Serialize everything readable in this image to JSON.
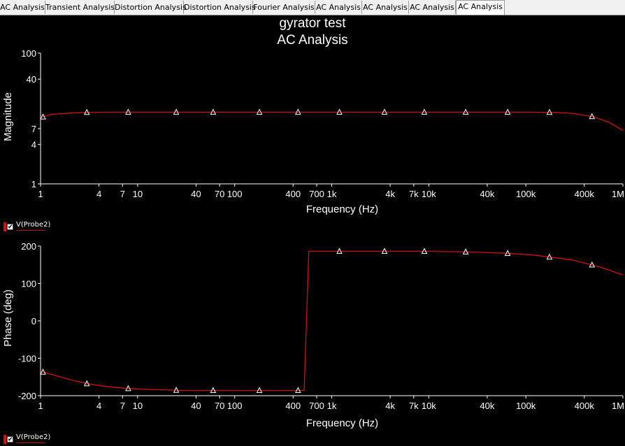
{
  "tabs": [
    {
      "label": "AC Analysis",
      "active": false
    },
    {
      "label": "Transient Analysis",
      "active": false
    },
    {
      "label": "Distortion Analysis",
      "active": false
    },
    {
      "label": "Distortion Analysis",
      "active": false
    },
    {
      "label": "Fourier Analysis",
      "active": false
    },
    {
      "label": "AC Analysis",
      "active": false
    },
    {
      "label": "AC Analysis",
      "active": false
    },
    {
      "label": "AC Analysis",
      "active": false
    },
    {
      "label": "AC Analysis",
      "active": true
    }
  ],
  "title": "gyrator test",
  "subtitle": "AC Analysis",
  "colors": {
    "trace": "#d01010",
    "axis": "#ffffff",
    "background": "#000000"
  },
  "legend": [
    {
      "label": "V(Probe2)",
      "checked": true
    },
    {
      "label": "V(Probe2)",
      "checked": true
    }
  ],
  "chart_data": [
    {
      "type": "line",
      "x_scale": "log",
      "y_scale": "log",
      "xlabel": "Frequency (Hz)",
      "ylabel": "Magnitude",
      "xlim": [
        1,
        1000000
      ],
      "ylim": [
        1,
        100
      ],
      "x_ticks": [
        "1",
        "4",
        "7",
        "10",
        "40",
        "70",
        "100",
        "400",
        "700",
        "1k",
        "4k",
        "7k",
        "10k",
        "40k",
        "100k",
        "400k",
        "1M"
      ],
      "x_tick_values": [
        1,
        4,
        7,
        10,
        40,
        70,
        100,
        400,
        700,
        1000,
        4000,
        7000,
        10000,
        40000,
        100000,
        400000,
        1000000
      ],
      "y_ticks": [
        "1",
        "4",
        "7",
        "40",
        "100"
      ],
      "y_tick_values": [
        1,
        4,
        7,
        40,
        100
      ],
      "series": [
        {
          "name": "V(Probe2)",
          "x": [
            1,
            1.3,
            2,
            3,
            6,
            9,
            20,
            50,
            100,
            1000,
            10000,
            100000,
            200000,
            300000,
            500000,
            700000,
            1000000
          ],
          "y": [
            10.3,
            11.6,
            12.1,
            12.4,
            12.5,
            12.5,
            12.5,
            12.5,
            12.5,
            12.5,
            12.5,
            12.5,
            12.4,
            12.0,
            10.6,
            8.9,
            6.6
          ],
          "markers_x": [
            1.06,
            3,
            8,
            25,
            60,
            180,
            450,
            1200,
            3500,
            9000,
            24000,
            65000,
            175000,
            480000
          ],
          "marker": "triangle"
        }
      ]
    },
    {
      "type": "line",
      "x_scale": "log",
      "y_scale": "linear",
      "xlabel": "Frequency (Hz)",
      "ylabel": "Phase (deg)",
      "xlim": [
        1,
        1000000
      ],
      "ylim": [
        -200,
        200
      ],
      "x_ticks": [
        "1",
        "4",
        "7",
        "10",
        "40",
        "70",
        "100",
        "400",
        "700",
        "1k",
        "4k",
        "7k",
        "10k",
        "40k",
        "100k",
        "400k",
        "1M"
      ],
      "x_tick_values": [
        1,
        4,
        7,
        10,
        40,
        70,
        100,
        400,
        700,
        1000,
        4000,
        7000,
        10000,
        40000,
        100000,
        400000,
        1000000
      ],
      "y_ticks": [
        "-200",
        "-100",
        "0",
        "100",
        "200"
      ],
      "y_tick_values": [
        -200,
        -100,
        0,
        100,
        200
      ],
      "series": [
        {
          "name": "V(Probe2)",
          "x": [
            1,
            2,
            3,
            5,
            8,
            15,
            30,
            60,
            100,
            200,
            400,
            520,
            580,
            700,
            1000,
            3000,
            10000,
            30000,
            60000,
            120000,
            300000,
            600000,
            1000000
          ],
          "y": [
            -135,
            -157,
            -168,
            -176,
            -181,
            -184,
            -186,
            -186,
            -186,
            -186,
            -186,
            -186,
            186,
            186,
            186,
            186,
            186,
            184,
            181,
            176,
            163,
            143,
            123
          ],
          "markers_x": [
            1.06,
            3,
            8,
            25,
            60,
            180,
            450,
            1200,
            3500,
            9000,
            24000,
            65000,
            175000,
            480000
          ],
          "marker": "triangle"
        }
      ]
    }
  ]
}
